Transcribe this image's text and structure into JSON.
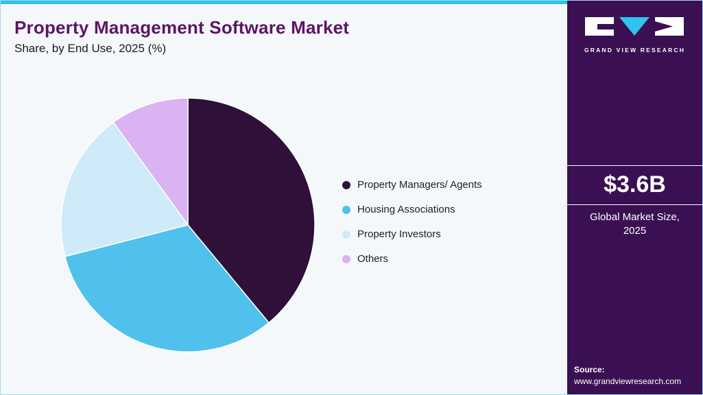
{
  "header": {
    "title": "Property Management Software Market",
    "subtitle": "Share, by End Use, 2025 (%)"
  },
  "chart_data": {
    "type": "pie",
    "title": "Property Management Software Market Share, by End Use, 2025 (%)",
    "labels": [
      "Property Managers/ Agents",
      "Housing Associations",
      "Property Investors",
      "Others"
    ],
    "values": [
      39,
      32,
      19,
      10
    ],
    "unit": "%",
    "colors": [
      "#2e1038",
      "#4fc1ec",
      "#cfeaf9",
      "#d9b3f2"
    ],
    "legend_position": "right",
    "start_angle_deg": 0,
    "slice_border_color": "#ffffff"
  },
  "sidebar": {
    "brand": "GRAND VIEW RESEARCH",
    "market_size": "$3.6B",
    "market_size_caption": "Global Market Size, 2025",
    "source_label": "Source:",
    "source_url": "www.grandviewresearch.com",
    "background_color": "#3a1053",
    "accent_color": "#2fc3ee"
  }
}
